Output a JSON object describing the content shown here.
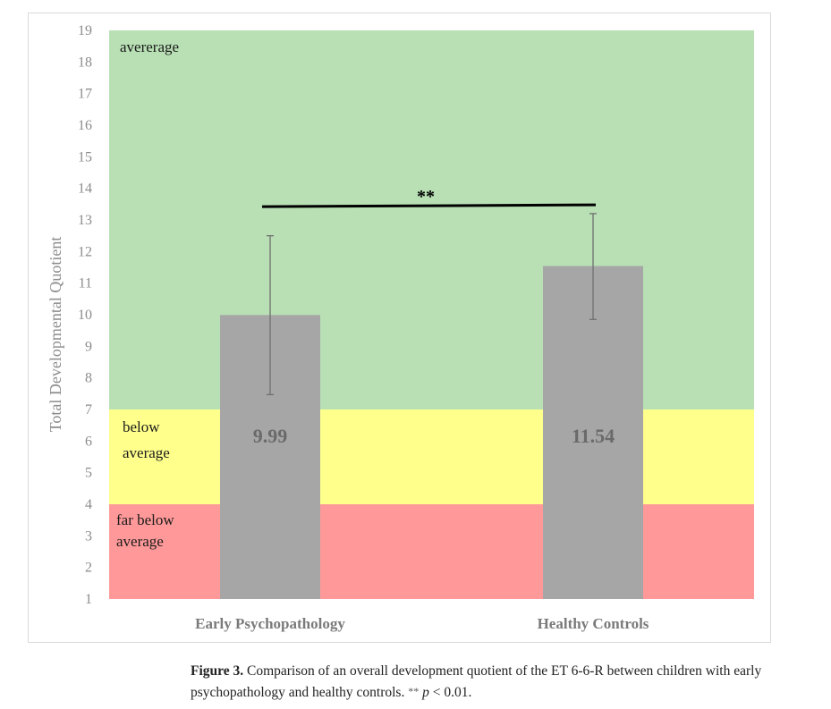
{
  "chart_data": {
    "type": "bar",
    "title": "",
    "xlabel": "",
    "ylabel": "Total Developmental Quotient",
    "ylim": [
      1,
      19
    ],
    "yticks": [
      1,
      2,
      3,
      4,
      5,
      6,
      7,
      8,
      9,
      10,
      11,
      12,
      13,
      14,
      15,
      16,
      17,
      18,
      19
    ],
    "grid": false,
    "categories": [
      "Early Psychopathology",
      "Healthy Controls"
    ],
    "values": [
      9.99,
      11.54
    ],
    "value_labels": [
      "9.99",
      "11.54"
    ],
    "error_bars": [
      {
        "low": 7.47,
        "high": 12.5
      },
      {
        "low": 9.85,
        "high": 13.2
      }
    ],
    "bar_color": "#a6a6a6",
    "bands": [
      {
        "name": "far-below-average",
        "label_lines": [
          "far below",
          "average"
        ],
        "from": 1,
        "to": 4,
        "color": "#ff9999"
      },
      {
        "name": "below-average",
        "label_lines": [
          "below",
          "average"
        ],
        "from": 4,
        "to": 7,
        "color": "#ffff8c"
      },
      {
        "name": "average",
        "label_lines": [
          "avererage"
        ],
        "from": 7,
        "to": 19,
        "color": "#b8e0b4"
      }
    ],
    "significance": {
      "label": "**",
      "y": 13.45,
      "between": [
        "Early Psychopathology",
        "Healthy Controls"
      ]
    }
  },
  "caption": {
    "figure_label": "Figure 3.",
    "text": " Comparison of an overall development quotient of the ET 6-6-R between children with early psychopathology and healthy controls. ",
    "stars": "**",
    "p": "p",
    "p_rest": " < 0.01."
  }
}
